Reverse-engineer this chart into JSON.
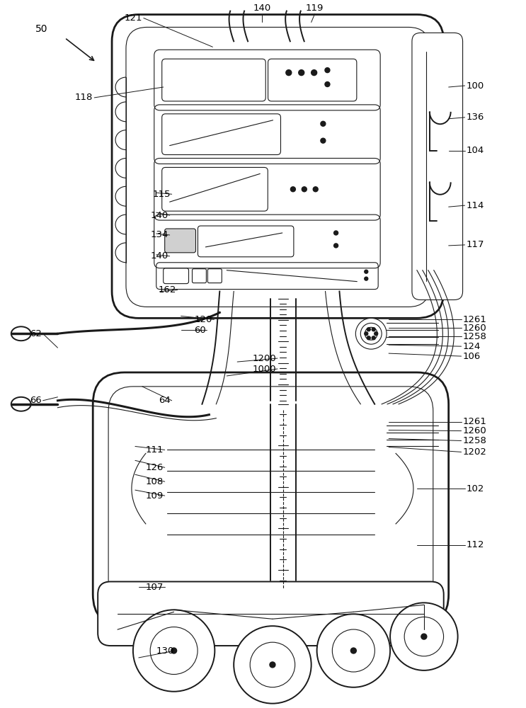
{
  "bg_color": "#ffffff",
  "line_color": "#1a1a1a",
  "label_color": "#000000",
  "figsize": [
    7.43,
    10.0
  ],
  "dpi": 100,
  "lw_thick": 2.0,
  "lw_main": 1.4,
  "lw_thin": 0.8
}
